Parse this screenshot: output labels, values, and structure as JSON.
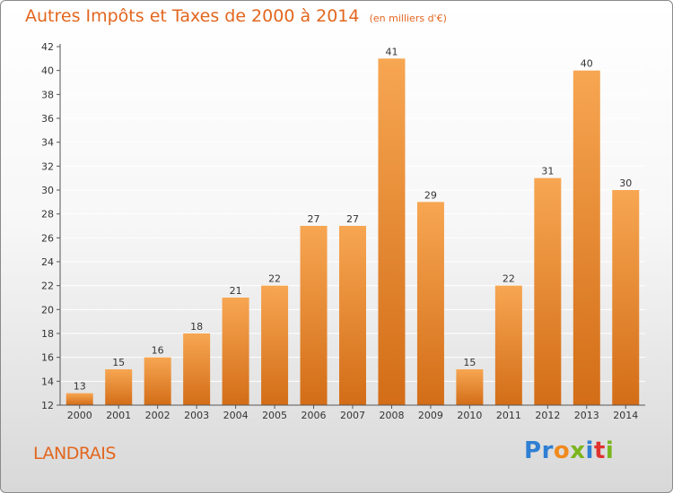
{
  "header": {
    "title": "Autres Impôts et Taxes de 2000 à 2014",
    "subtitle": "(en milliers d'€)"
  },
  "footer": {
    "commune": "LANDRAIS",
    "logo_text": "Proxiti",
    "logo_letters": [
      "P",
      "r",
      "o",
      "x",
      "i",
      "t",
      "i"
    ],
    "logo_colors": [
      "#2f7fd3",
      "#2f7fd3",
      "#f08a1c",
      "#7ab51d",
      "#2f7fd3",
      "#e0322e",
      "#7ab51d"
    ]
  },
  "colors": {
    "bar_top": "#f7a652",
    "bar_bottom": "#d36d17",
    "accent": "#e2661e",
    "axis": "#555555",
    "grid": "#ffffff"
  },
  "chart_data": {
    "type": "bar",
    "title": "Autres Impôts et Taxes de 2000 à 2014",
    "subtitle": "(en milliers d'€)",
    "xlabel": "",
    "ylabel": "",
    "categories": [
      "2000",
      "2001",
      "2002",
      "2003",
      "2004",
      "2005",
      "2006",
      "2007",
      "2008",
      "2009",
      "2010",
      "2011",
      "2012",
      "2013",
      "2014"
    ],
    "values": [
      13,
      15,
      16,
      18,
      21,
      22,
      27,
      27,
      41,
      29,
      15,
      22,
      31,
      40,
      30
    ],
    "ylim": [
      12,
      42
    ],
    "yticks": [
      12,
      14,
      16,
      18,
      20,
      22,
      24,
      26,
      28,
      30,
      32,
      34,
      36,
      38,
      40,
      42
    ],
    "grid": true,
    "data_labels": true
  }
}
